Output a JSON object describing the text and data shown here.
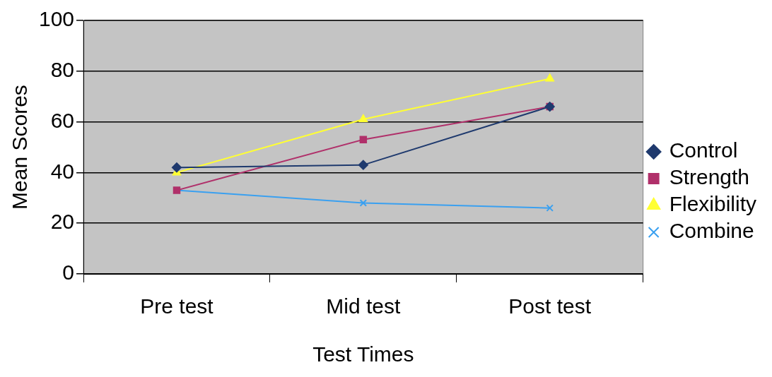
{
  "chart_data": {
    "type": "line",
    "xlabel": "Test Times",
    "ylabel": "Mean Scores",
    "categories": [
      "Pre test",
      "Mid test",
      "Post test"
    ],
    "series": [
      {
        "name": "Control",
        "color": "#1f3a6e",
        "marker": "diamond",
        "values": [
          42,
          43,
          66
        ]
      },
      {
        "name": "Strength",
        "color": "#b0306a",
        "marker": "square",
        "values": [
          33,
          53,
          66
        ]
      },
      {
        "name": "Flexibility",
        "color": "#ffff33",
        "marker": "triangle",
        "values": [
          40,
          61,
          77
        ]
      },
      {
        "name": "Combine",
        "color": "#3aa0f0",
        "marker": "cross",
        "values": [
          33,
          28,
          26
        ]
      }
    ],
    "ylim": [
      0,
      100
    ],
    "yticks": [
      0,
      20,
      40,
      60,
      80,
      100
    ],
    "grid": "y",
    "legend": "right",
    "line_style": "solid"
  }
}
